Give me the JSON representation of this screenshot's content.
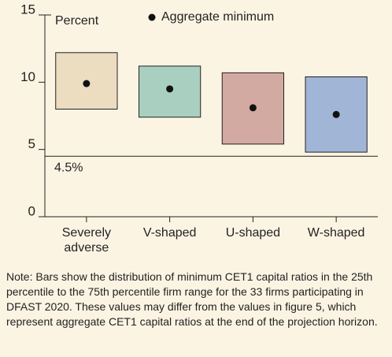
{
  "chart_data": {
    "type": "floating_box",
    "y_axis_label": "Percent",
    "categories": [
      "Severely adverse",
      "V-shaped",
      "U-shaped",
      "W-shaped"
    ],
    "boxes": [
      {
        "low": 8.0,
        "high": 12.2,
        "color": "#ecdcc0"
      },
      {
        "low": 7.4,
        "high": 11.2,
        "color": "#a8cfc0"
      },
      {
        "low": 5.4,
        "high": 10.7,
        "color": "#d3aaa2"
      },
      {
        "low": 4.8,
        "high": 10.4,
        "color": "#a1b5d6"
      }
    ],
    "series": [
      {
        "name": "Aggregate minimum",
        "color": "#111111",
        "values": [
          9.9,
          9.5,
          8.1,
          7.6
        ]
      }
    ],
    "reference_line": {
      "value": 4.5,
      "label": "4.5%"
    },
    "ylim": [
      0,
      15
    ],
    "yticks": [
      0,
      5,
      10,
      15
    ],
    "note": "Note: Bars show the distribution of minimum CET1 capital ratios in the 25th percentile to the 75th percentile firm range for the 33 firms participating in DFAST 2020. These values may differ from the values in figure 5, which represent aggregate CET1 capital ratios at the end of the projection horizon."
  }
}
